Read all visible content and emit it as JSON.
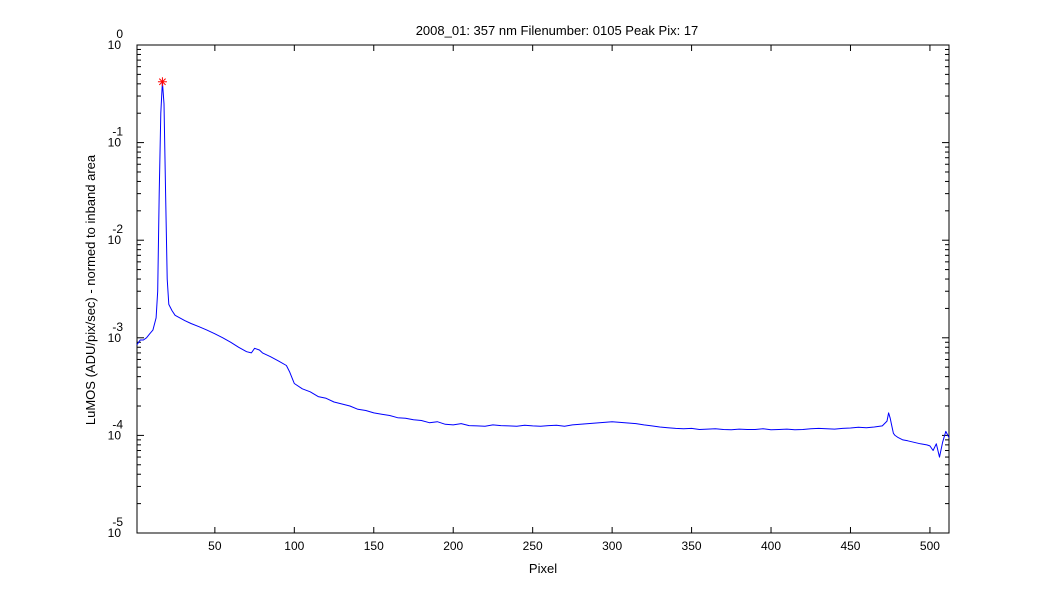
{
  "chart_data": {
    "type": "line",
    "title": "2008_01: 357 nm  Filenumber: 0105 Peak Pix: 17",
    "xlabel": "Pixel",
    "ylabel": "LuMOS (ADU/pix/sec) - normed to inband area",
    "xlim": [
      1,
      512
    ],
    "ylim": [
      1e-05,
      1
    ],
    "yscale": "log",
    "grid": false,
    "x_ticks": [
      50,
      100,
      150,
      200,
      250,
      300,
      350,
      400,
      450,
      500
    ],
    "x_tick_labels": [
      "50",
      "100",
      "150",
      "200",
      "250",
      "300",
      "350",
      "400",
      "450",
      "500"
    ],
    "y_ticks": [
      1,
      0.1,
      0.01,
      0.001,
      0.0001,
      1e-05
    ],
    "y_tick_labels": [
      {
        "base": "10",
        "exp": "0"
      },
      {
        "base": "10",
        "exp": "-1"
      },
      {
        "base": "10",
        "exp": "-2"
      },
      {
        "base": "10",
        "exp": "-3"
      },
      {
        "base": "10",
        "exp": "-4"
      },
      {
        "base": "10",
        "exp": "-5"
      }
    ],
    "series": [
      {
        "color": "#0000ff",
        "x": [
          1,
          3,
          5,
          7,
          9,
          11,
          13,
          14,
          15,
          16,
          17,
          18,
          19,
          20,
          21,
          23,
          25,
          28,
          31,
          35,
          40,
          45,
          50,
          55,
          60,
          65,
          70,
          73,
          75,
          78,
          80,
          85,
          90,
          95,
          97,
          100,
          105,
          110,
          115,
          120,
          125,
          130,
          135,
          140,
          145,
          150,
          155,
          160,
          165,
          170,
          175,
          180,
          185,
          190,
          195,
          200,
          205,
          210,
          215,
          220,
          225,
          230,
          235,
          240,
          245,
          250,
          255,
          260,
          265,
          270,
          275,
          280,
          285,
          290,
          295,
          300,
          305,
          310,
          315,
          320,
          325,
          330,
          335,
          340,
          345,
          350,
          355,
          360,
          365,
          370,
          375,
          380,
          385,
          390,
          395,
          400,
          405,
          410,
          415,
          420,
          425,
          430,
          435,
          440,
          445,
          450,
          455,
          460,
          465,
          470,
          473,
          474,
          475,
          476,
          477,
          478,
          480,
          483,
          486,
          490,
          494,
          498,
          500,
          502,
          504,
          506,
          508,
          510,
          512
        ],
        "y": [
          0.00085,
          0.00095,
          0.00095,
          0.001,
          0.0011,
          0.0012,
          0.0016,
          0.003,
          0.03,
          0.2,
          0.42,
          0.25,
          0.03,
          0.004,
          0.0022,
          0.0019,
          0.0017,
          0.0016,
          0.0015,
          0.0014,
          0.0013,
          0.0012,
          0.0011,
          0.001,
          0.0009,
          0.0008,
          0.00072,
          0.0007,
          0.00078,
          0.00075,
          0.0007,
          0.00064,
          0.00058,
          0.00052,
          0.00045,
          0.00034,
          0.0003,
          0.00028,
          0.00025,
          0.00024,
          0.00022,
          0.00021,
          0.0002,
          0.000185,
          0.00018,
          0.00017,
          0.000165,
          0.00016,
          0.000152,
          0.00015,
          0.000145,
          0.000142,
          0.000135,
          0.000138,
          0.00013,
          0.000128,
          0.000132,
          0.000126,
          0.000125,
          0.000124,
          0.000128,
          0.000126,
          0.000125,
          0.000124,
          0.000127,
          0.000125,
          0.000124,
          0.000126,
          0.000127,
          0.000124,
          0.000128,
          0.00013,
          0.000132,
          0.000134,
          0.000136,
          0.000138,
          0.000136,
          0.000134,
          0.000132,
          0.000128,
          0.000125,
          0.000122,
          0.00012,
          0.000118,
          0.000117,
          0.000118,
          0.000115,
          0.000116,
          0.000117,
          0.000115,
          0.000114,
          0.000116,
          0.000115,
          0.000115,
          0.000117,
          0.000114,
          0.000115,
          0.000116,
          0.000114,
          0.000115,
          0.000117,
          0.000118,
          0.000117,
          0.000116,
          0.000118,
          0.000119,
          0.000121,
          0.00012,
          0.000122,
          0.000125,
          0.00014,
          0.00017,
          0.00015,
          0.000125,
          0.000105,
          0.0001,
          9.5e-05,
          9e-05,
          8.8e-05,
          8.5e-05,
          8.2e-05,
          8e-05,
          7.8e-05,
          7e-05,
          8.2e-05,
          6e-05,
          8.5e-05,
          0.00011,
          9.5e-05
        ]
      }
    ],
    "peak_marker": {
      "x": 17,
      "y": 0.42,
      "color": "#ff0000",
      "symbol": "*"
    }
  }
}
